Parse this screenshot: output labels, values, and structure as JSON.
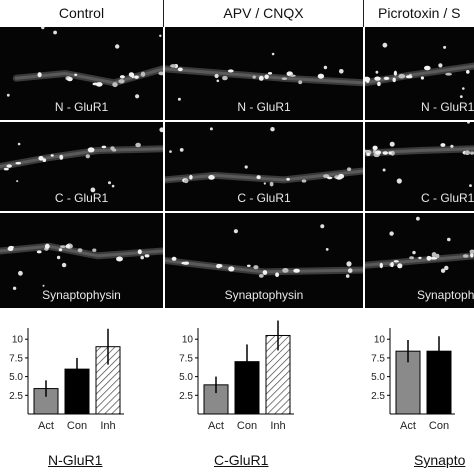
{
  "columns": [
    {
      "header": "Control",
      "labels": [
        "N - GluR1",
        "C - GluR1",
        "Synaptophysin"
      ]
    },
    {
      "header": "APV / CNQX",
      "labels": [
        "N - GluR1",
        "C - GluR1",
        "Synaptophysin"
      ]
    },
    {
      "header": "Picrotoxin / S",
      "labels": [
        "N - GluR1",
        "C - GluR1",
        "Synaptophy"
      ]
    }
  ],
  "colors": {
    "act": "#8a8a8a",
    "con": "#000000",
    "inh_hatch": "#444444",
    "image_bg": "#050505"
  },
  "chart_data": [
    {
      "type": "bar",
      "title": "N-GluR1",
      "categories": [
        "Act",
        "Con",
        "Inh"
      ],
      "values": [
        3.4,
        6.0,
        9.0
      ],
      "errors": [
        1.1,
        1.5,
        2.4
      ],
      "yticks": [
        "2.5",
        "5.0",
        "7.5",
        "10"
      ],
      "ylim": [
        0,
        11.5
      ],
      "fills": [
        "gray",
        "black",
        "hatched"
      ]
    },
    {
      "type": "bar",
      "title": "C-GluR1",
      "categories": [
        "Act",
        "Con",
        "Inh"
      ],
      "values": [
        3.9,
        7.0,
        10.5
      ],
      "errors": [
        1.1,
        2.3,
        2.0
      ],
      "yticks": [
        "2.5",
        "5.0",
        "7.5",
        "10"
      ],
      "ylim": [
        0,
        11.5
      ],
      "fills": [
        "gray",
        "black",
        "hatched"
      ]
    },
    {
      "type": "bar",
      "title": "Synapto",
      "categories": [
        "Act",
        "Con"
      ],
      "values": [
        8.4,
        8.4
      ],
      "errors": [
        1.5,
        2.0
      ],
      "yticks": [
        "2.5",
        "5.0",
        "7.5",
        "10"
      ],
      "ylim": [
        0,
        11.5
      ],
      "fills": [
        "gray",
        "black"
      ]
    }
  ]
}
